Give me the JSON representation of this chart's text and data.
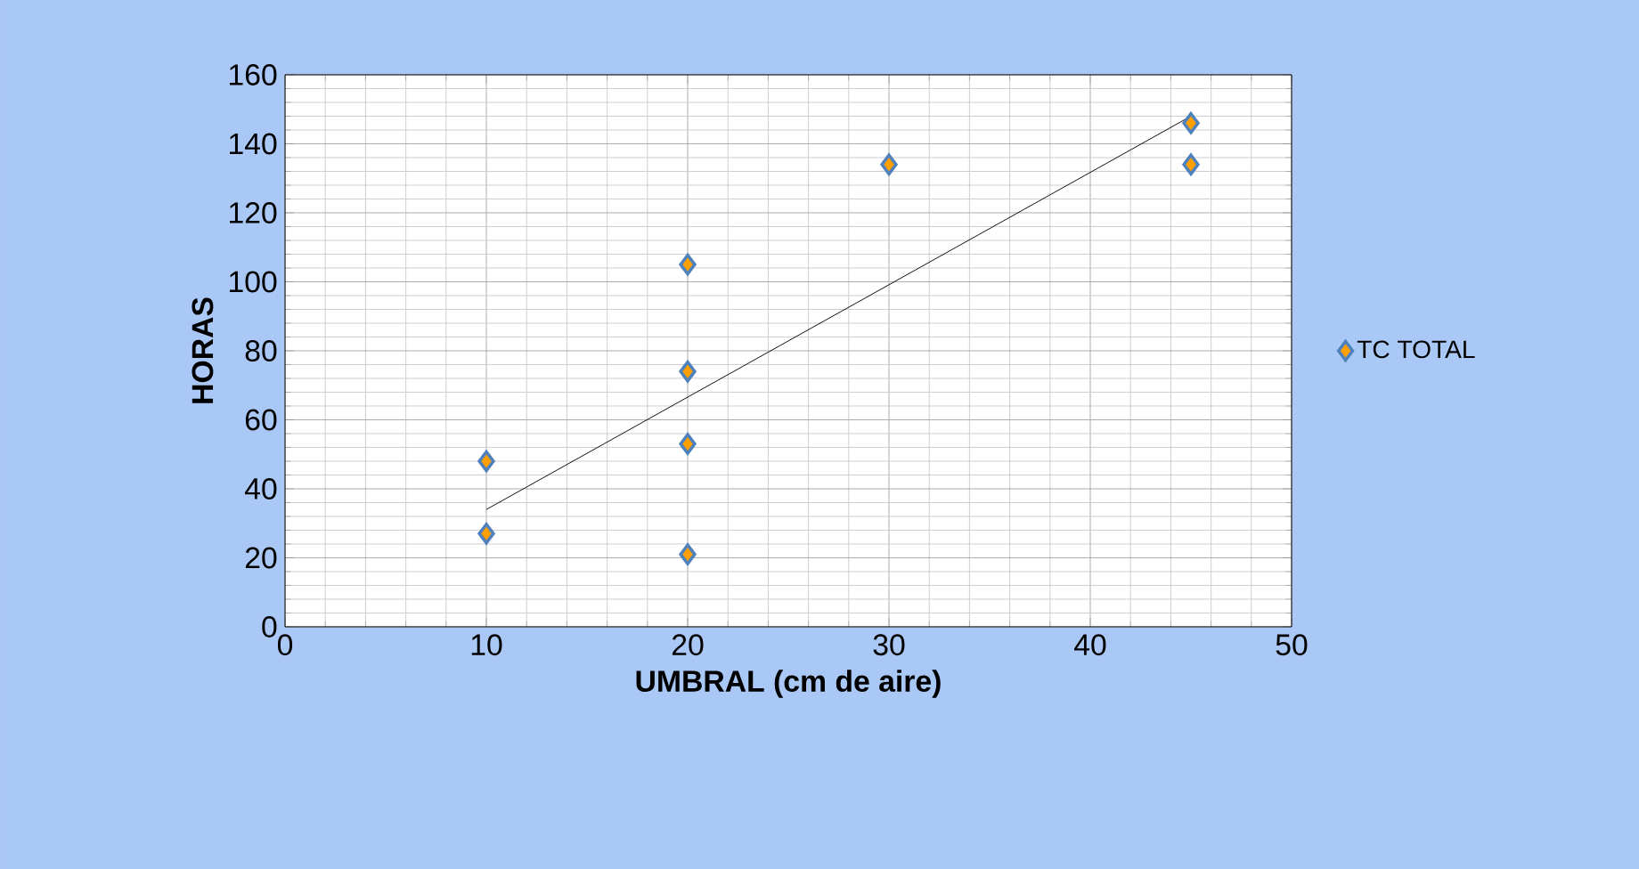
{
  "chart_data": {
    "type": "scatter",
    "xlabel": "UMBRAL (cm de aire)",
    "ylabel": "HORAS",
    "xlim": [
      0,
      50
    ],
    "xticks": [
      0,
      10,
      20,
      30,
      40,
      50
    ],
    "ylim": [
      0,
      160
    ],
    "yticks": [
      0,
      20,
      40,
      60,
      80,
      100,
      120,
      140,
      160
    ],
    "grid": true,
    "legend": "right",
    "series": [
      {
        "name": "TC TOTAL",
        "marker": "diamond",
        "color": "#ffa000",
        "x": [
          10,
          10,
          20,
          20,
          20,
          20,
          30,
          45,
          45
        ],
        "values": [
          48,
          27,
          105,
          74,
          53,
          21,
          134,
          146,
          134
        ]
      },
      {
        "type": "line",
        "color": "#000000",
        "x": [
          10,
          45
        ],
        "values": [
          34,
          148
        ]
      }
    ]
  }
}
